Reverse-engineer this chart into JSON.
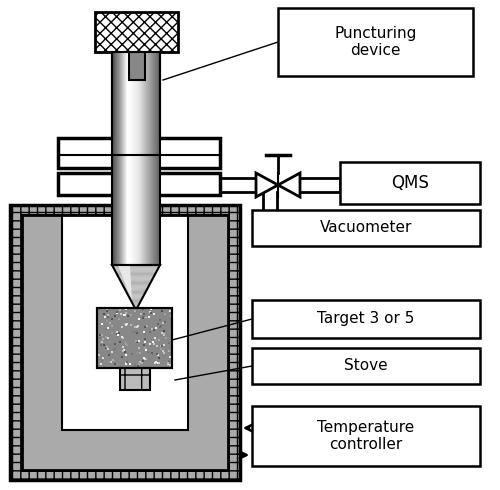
{
  "title": "",
  "bg_color": "#ffffff",
  "labels": {
    "puncturing_device": "Puncturing\ndevice",
    "qms": "QMS",
    "vacuometer": "Vacuometer",
    "target": "Target 3 or 5",
    "stove": "Stove",
    "temp_controller": "Temperature\ncontroller"
  },
  "colors": {
    "black": "#000000",
    "white": "#ffffff",
    "light_gray": "#d0d0d0",
    "mid_gray": "#888888",
    "checker_dark": "#000000",
    "checker_light": "#ffffff"
  }
}
